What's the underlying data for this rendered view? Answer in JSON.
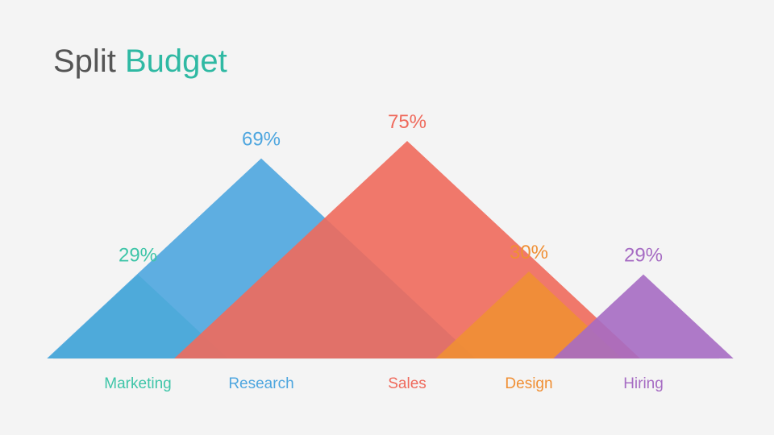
{
  "title": {
    "part1": "Split",
    "part2": "Budget"
  },
  "colors": {
    "title": "#555555",
    "title_accent": "#2fb9a3",
    "background": "#f4f4f4"
  },
  "chart_data": {
    "type": "area",
    "title": "Split Budget",
    "value_unit": "%",
    "categories": [
      "Marketing",
      "Research",
      "Sales",
      "Design",
      "Hiring"
    ],
    "values": [
      29,
      69,
      75,
      30,
      29
    ],
    "labels": [
      "29%",
      "69%",
      "75%",
      "30%",
      "29%"
    ],
    "colors": [
      "#3ec5a8",
      "#4ea6df",
      "#ef6a5c",
      "#f08f34",
      "#a66cc3"
    ],
    "mark_shape": "triangle",
    "grid": false,
    "legend": "none"
  }
}
